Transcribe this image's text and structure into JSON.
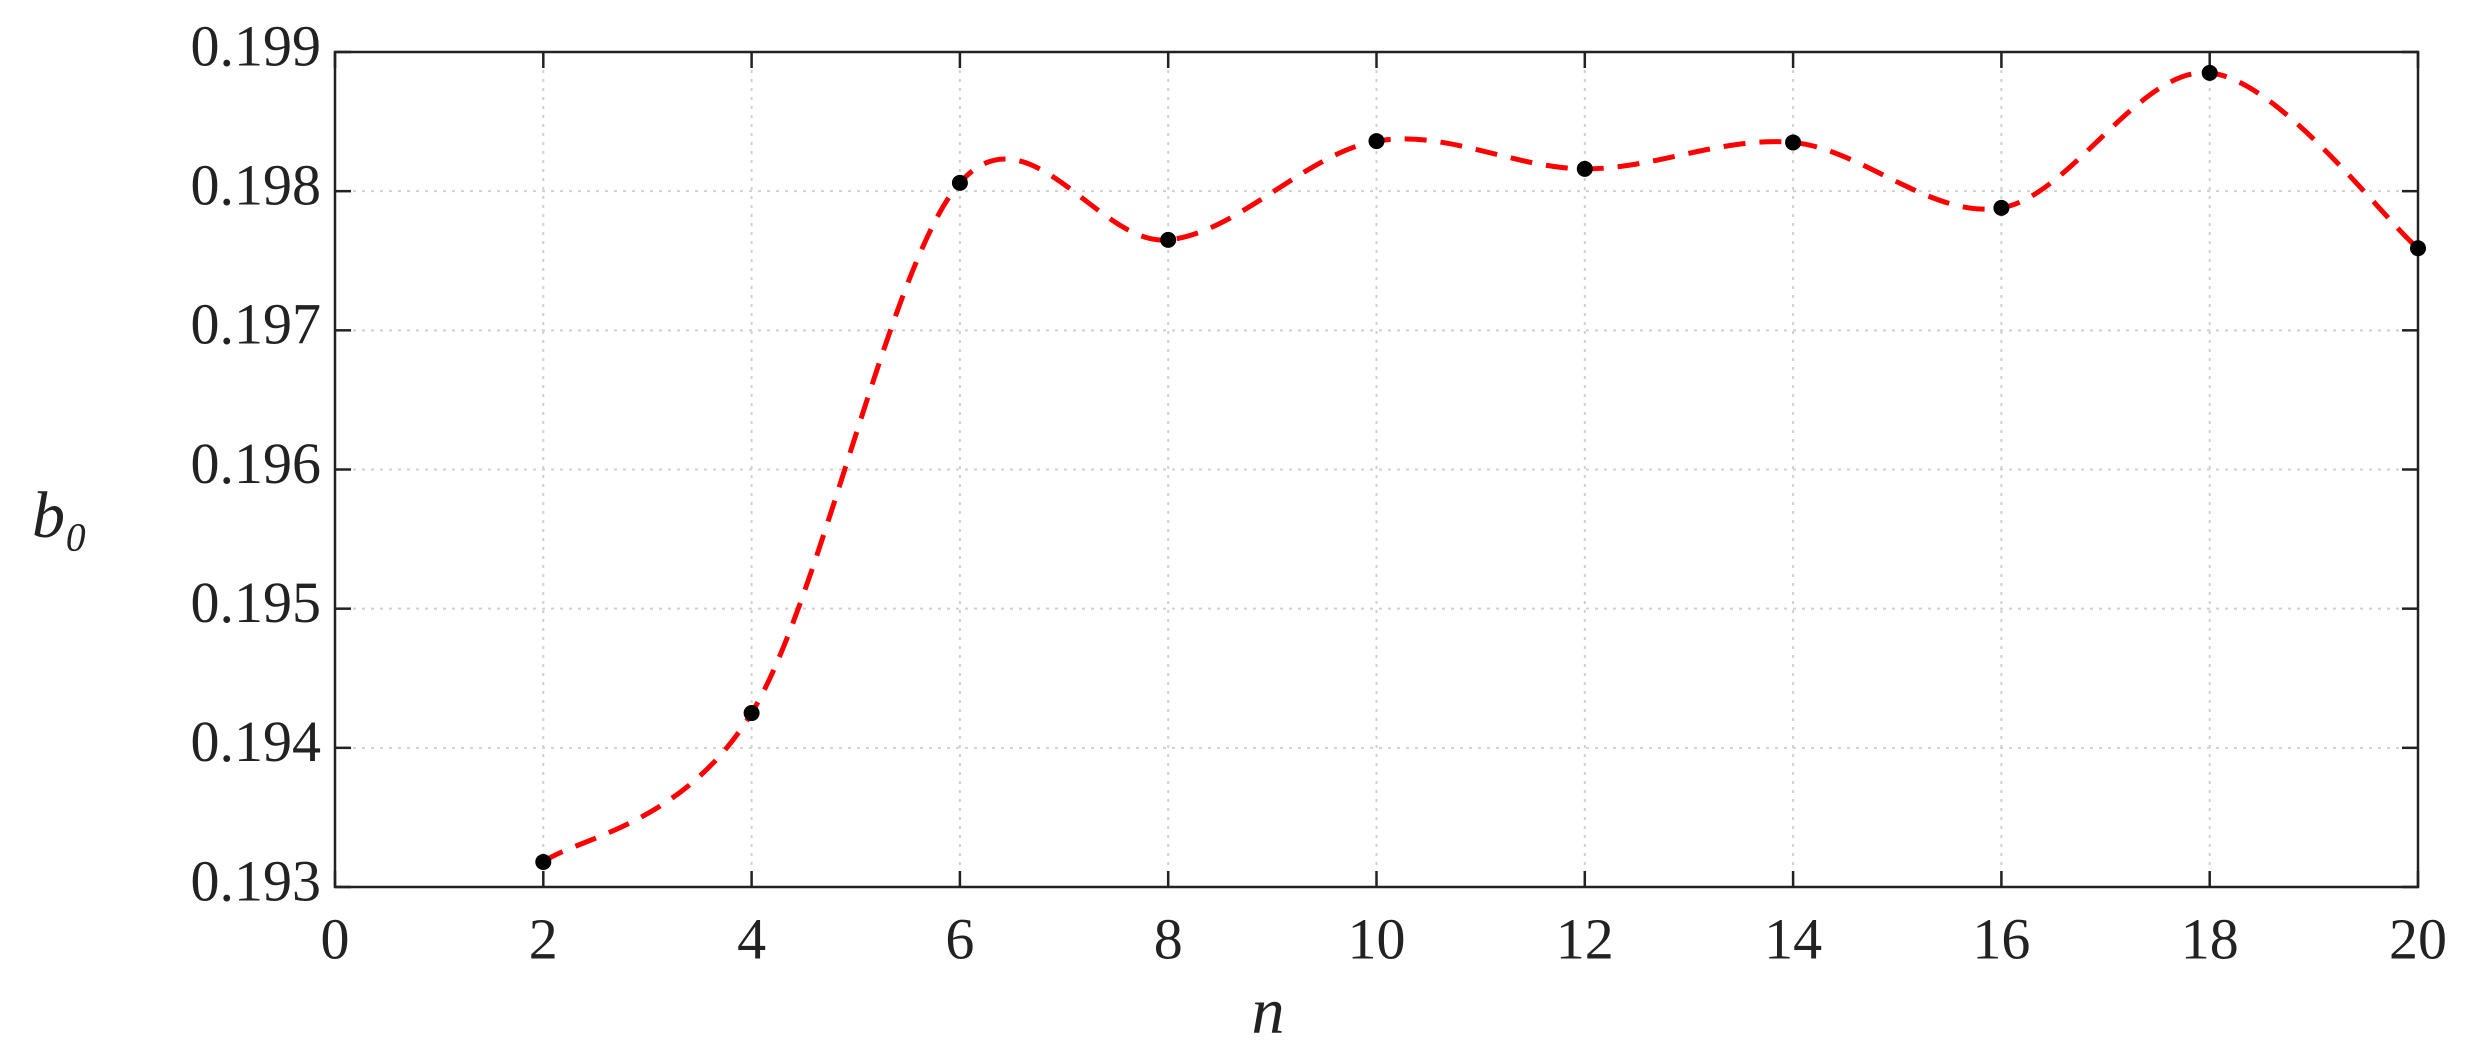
{
  "chart_data": {
    "type": "line",
    "xlabel": "n",
    "ylabel": "b₀",
    "x": [
      2,
      4,
      6,
      8,
      10,
      12,
      14,
      16,
      18,
      20
    ],
    "series": [
      {
        "color": "#ff0000",
        "marker_color": "#000000",
        "line_style": "dashed",
        "smooth": true,
        "values": [
          0.19318,
          0.19425,
          0.19806,
          0.19765,
          0.19836,
          0.19816,
          0.19835,
          0.19788,
          0.19885,
          0.19759
        ]
      }
    ],
    "xlim": [
      0,
      20
    ],
    "xticks": [
      0,
      2,
      4,
      6,
      8,
      10,
      12,
      14,
      16,
      18,
      20
    ],
    "ylim": [
      0.193,
      0.199
    ],
    "yticks": [
      0.193,
      0.194,
      0.195,
      0.196,
      0.197,
      0.198,
      0.199
    ],
    "grid": true
  }
}
